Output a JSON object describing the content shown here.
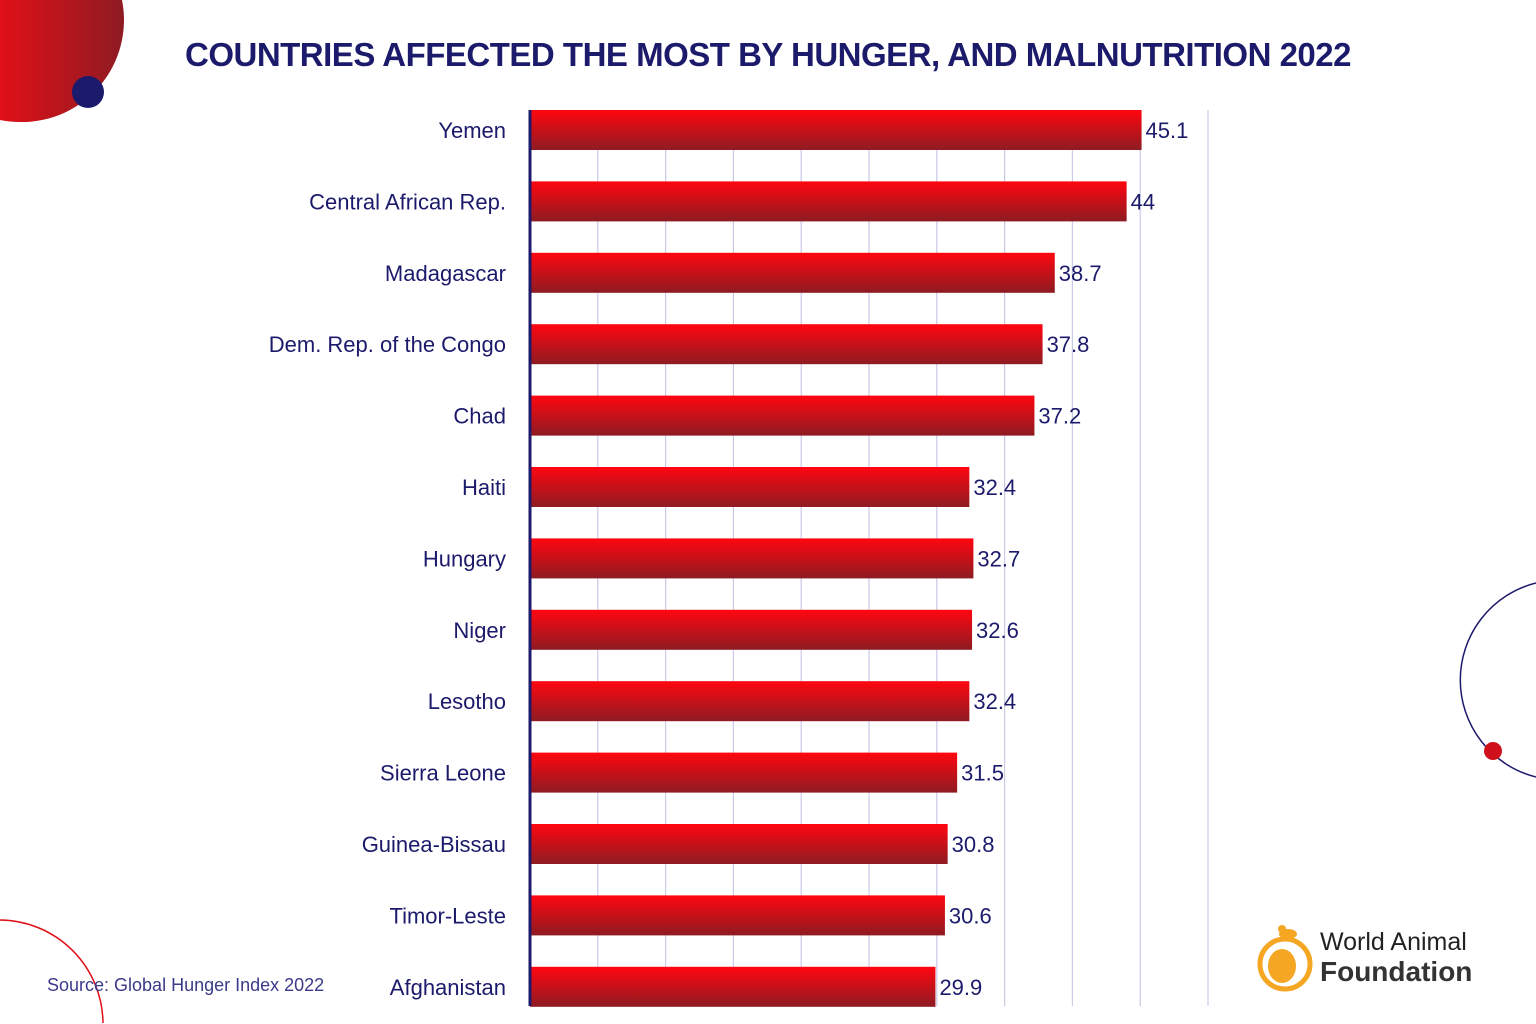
{
  "chart_data": {
    "type": "bar",
    "orientation": "horizontal",
    "title": "COUNTRIES AFFECTED THE MOST BY HUNGER, AND MALNUTRITION 2022",
    "categories": [
      "Yemen",
      "Central African Rep.",
      "Madagascar",
      "Dem. Rep. of the Congo",
      "Chad",
      "Haiti",
      "Hungary",
      "Niger",
      "Lesotho",
      "Sierra Leone",
      "Guinea-Bissau",
      "Timor-Leste",
      "Afghanistan"
    ],
    "values": [
      45.1,
      44,
      38.7,
      37.8,
      37.2,
      32.4,
      32.7,
      32.6,
      32.4,
      31.5,
      30.8,
      30.6,
      29.9
    ],
    "value_labels": [
      "45.1",
      "44",
      "38.7",
      "37.8",
      "37.2",
      "32.4",
      "32.7",
      "32.6",
      "32.4",
      "31.5",
      "30.8",
      "30.6",
      "29.9"
    ],
    "xlim": [
      0,
      50
    ],
    "grid_step": 5,
    "grid": true,
    "xlabel": "",
    "ylabel": "",
    "colors": {
      "bar_top": "#ff0610",
      "bar_bottom": "#8e1b22",
      "text": "#1c1a6b",
      "grid": "#c8cae6",
      "axis": "#1c1a6b"
    }
  },
  "source": "Source: Global Hunger Index 2022",
  "logo": {
    "line1": "World Animal",
    "line2": "Foundation",
    "color": "#f5a623"
  }
}
